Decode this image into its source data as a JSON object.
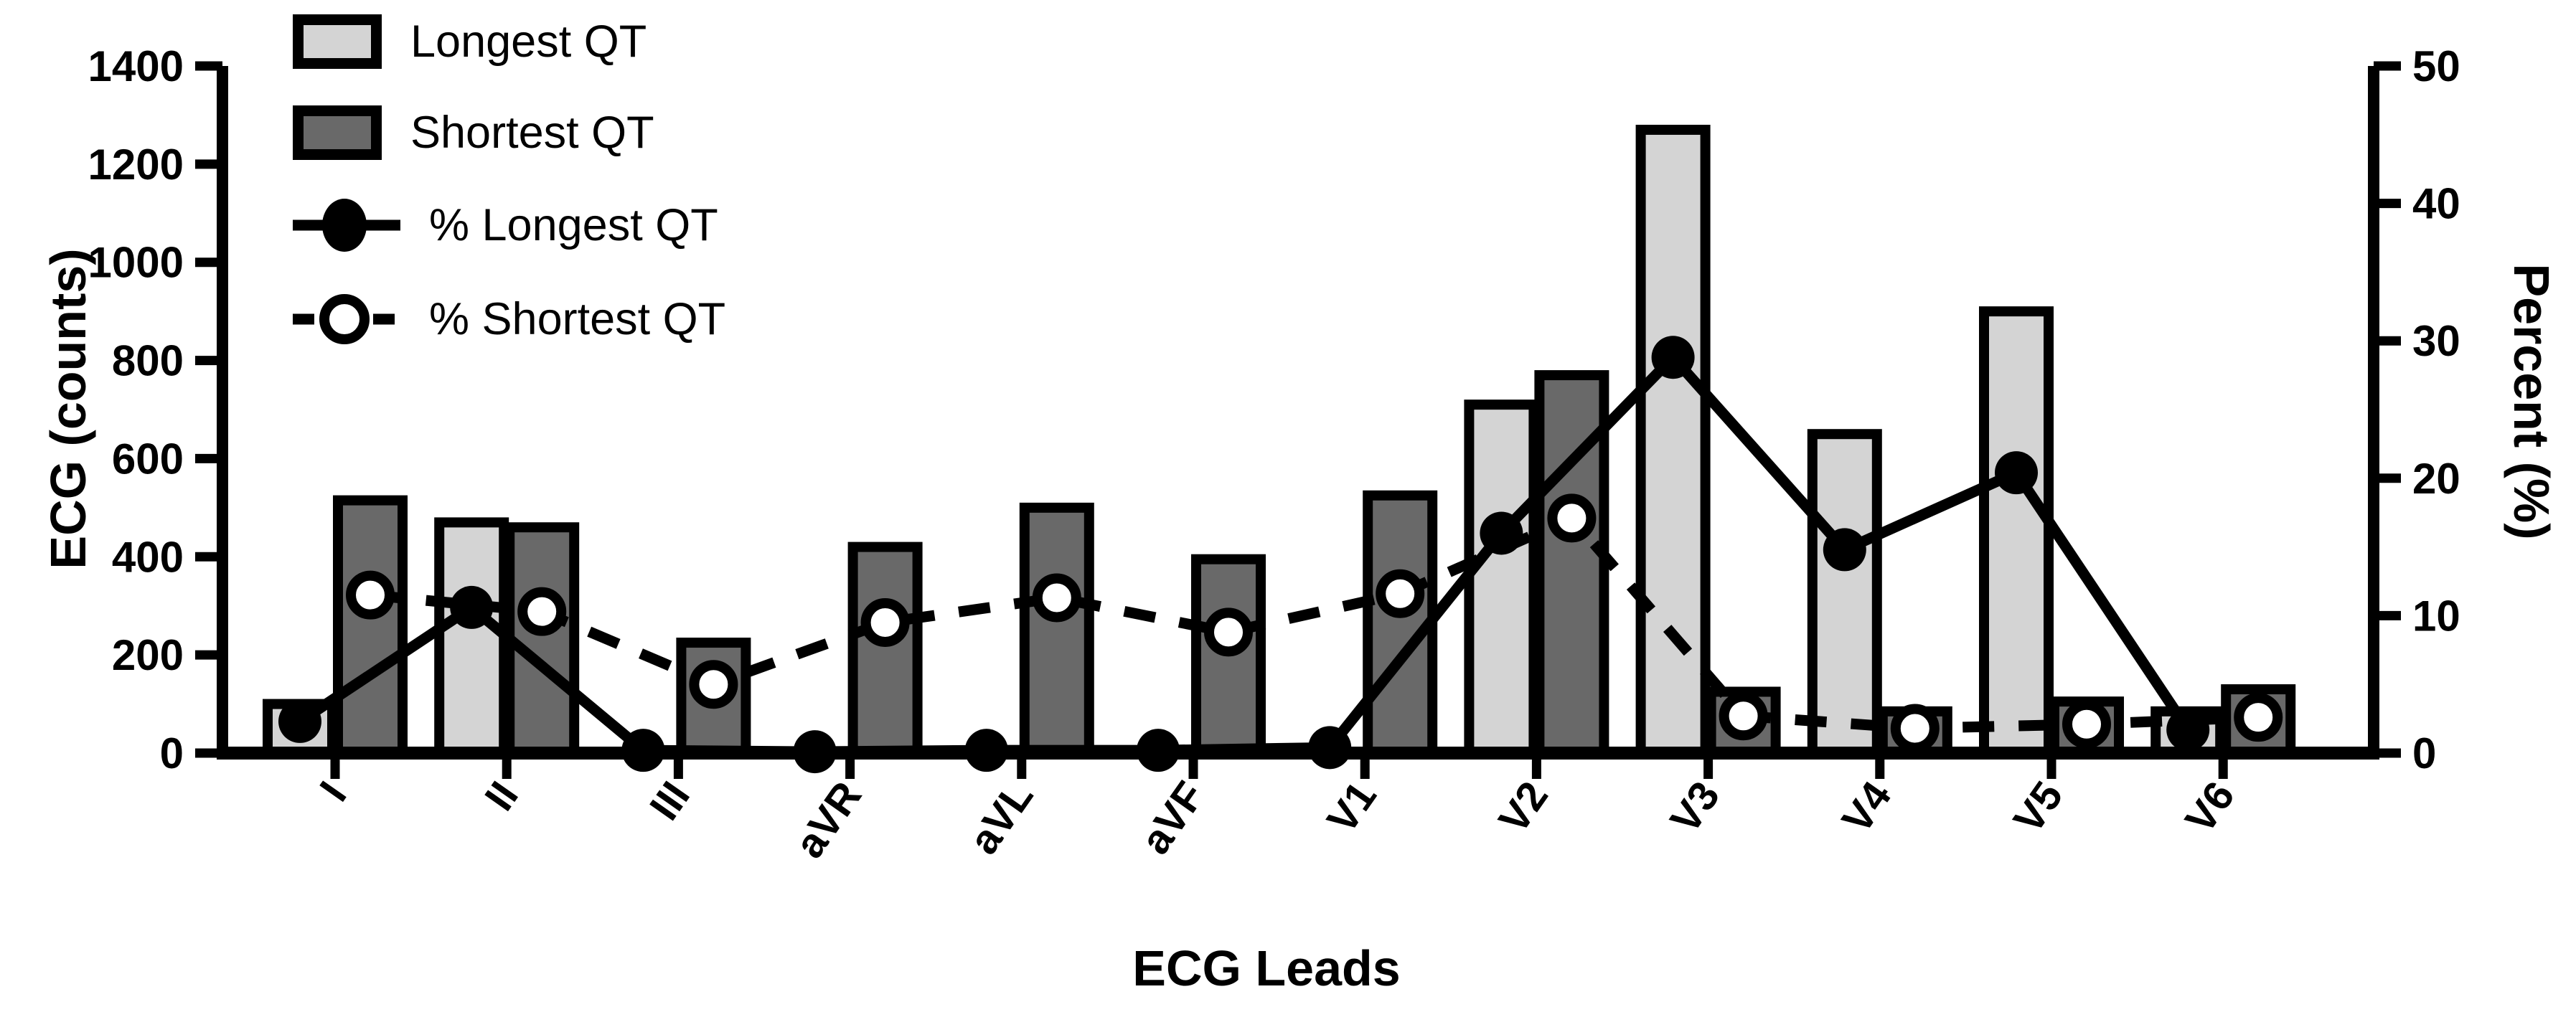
{
  "chart_data": {
    "type": "bar+line",
    "title": "",
    "categories": [
      "I",
      "II",
      "III",
      "aVR",
      "aVL",
      "aVF",
      "V1",
      "V2",
      "V3",
      "V4",
      "V5",
      "V6"
    ],
    "series": [
      {
        "name": "Longest QT",
        "type": "bar",
        "axis": "left",
        "color": "#d4d4d4",
        "border_color": "#000000",
        "values": [
          100,
          470,
          0,
          0,
          0,
          0,
          0,
          710,
          1270,
          650,
          900,
          85
        ]
      },
      {
        "name": "Shortest QT",
        "type": "bar",
        "axis": "left",
        "color": "#696969",
        "border_color": "#000000",
        "values": [
          515,
          460,
          225,
          420,
          500,
          395,
          525,
          770,
          125,
          85,
          105,
          130
        ]
      },
      {
        "name": "% Longest QT",
        "type": "line",
        "axis": "right",
        "marker": "filled-circle",
        "line_style": "solid",
        "color": "#000000",
        "values": [
          2.3,
          10.6,
          0.2,
          0.1,
          0.2,
          0.2,
          0.4,
          16.0,
          28.8,
          14.8,
          20.4,
          1.7
        ]
      },
      {
        "name": "% Shortest QT",
        "type": "line",
        "axis": "right",
        "marker": "open-circle",
        "line_style": "dashed",
        "color": "#000000",
        "values": [
          11.5,
          10.3,
          5.0,
          9.5,
          11.3,
          8.8,
          11.6,
          17.1,
          2.7,
          1.8,
          2.1,
          2.6
        ]
      }
    ],
    "left_axis": {
      "label": "ECG (counts)",
      "range": [
        0,
        1400
      ],
      "ticks": [
        0,
        200,
        400,
        600,
        800,
        1000,
        1200,
        1400
      ]
    },
    "right_axis": {
      "label": "Percent (%)",
      "range": [
        0,
        50
      ],
      "ticks": [
        0,
        10,
        20,
        30,
        40,
        50
      ]
    },
    "x_axis": {
      "label": "ECG Leads"
    },
    "legend": {
      "position": "top-left",
      "entries": [
        "Longest QT",
        "Shortest QT",
        "% Longest QT",
        "% Shortest QT"
      ]
    },
    "grid": false,
    "background": "#ffffff"
  }
}
